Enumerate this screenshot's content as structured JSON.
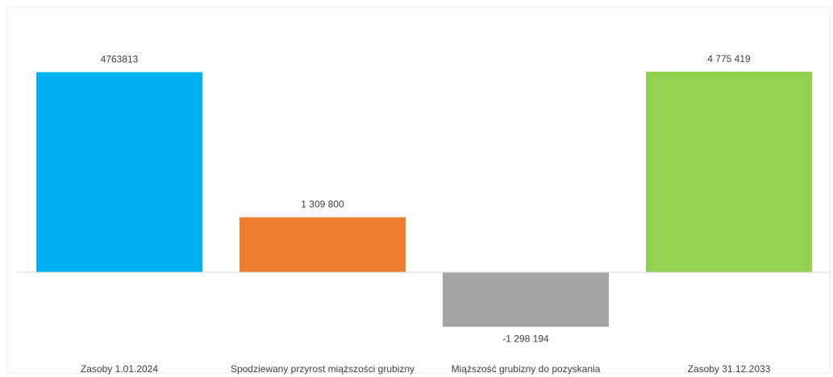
{
  "chart_data": {
    "type": "bar",
    "title": "",
    "xlabel": "",
    "ylabel": "",
    "categories": [
      "Zasoby 1.01.2024",
      "Spodziewany przyrost miąższości grubizny",
      "Miąższość grubizny do pozyskania",
      "Zasoby 31.12.2033"
    ],
    "values": [
      4763813,
      1309800,
      -1298194,
      4775419
    ],
    "data_labels": [
      "4763813",
      "1 309 800",
      "-1 298 194",
      "4 775 419"
    ],
    "colors": [
      "#00b0f0",
      "#ed7d31",
      "#a5a5a5",
      "#92d050"
    ],
    "ylim": [
      -1298194,
      4775419
    ],
    "grid": false,
    "legend": "none",
    "axis_line_color": "#d9d9d9"
  }
}
